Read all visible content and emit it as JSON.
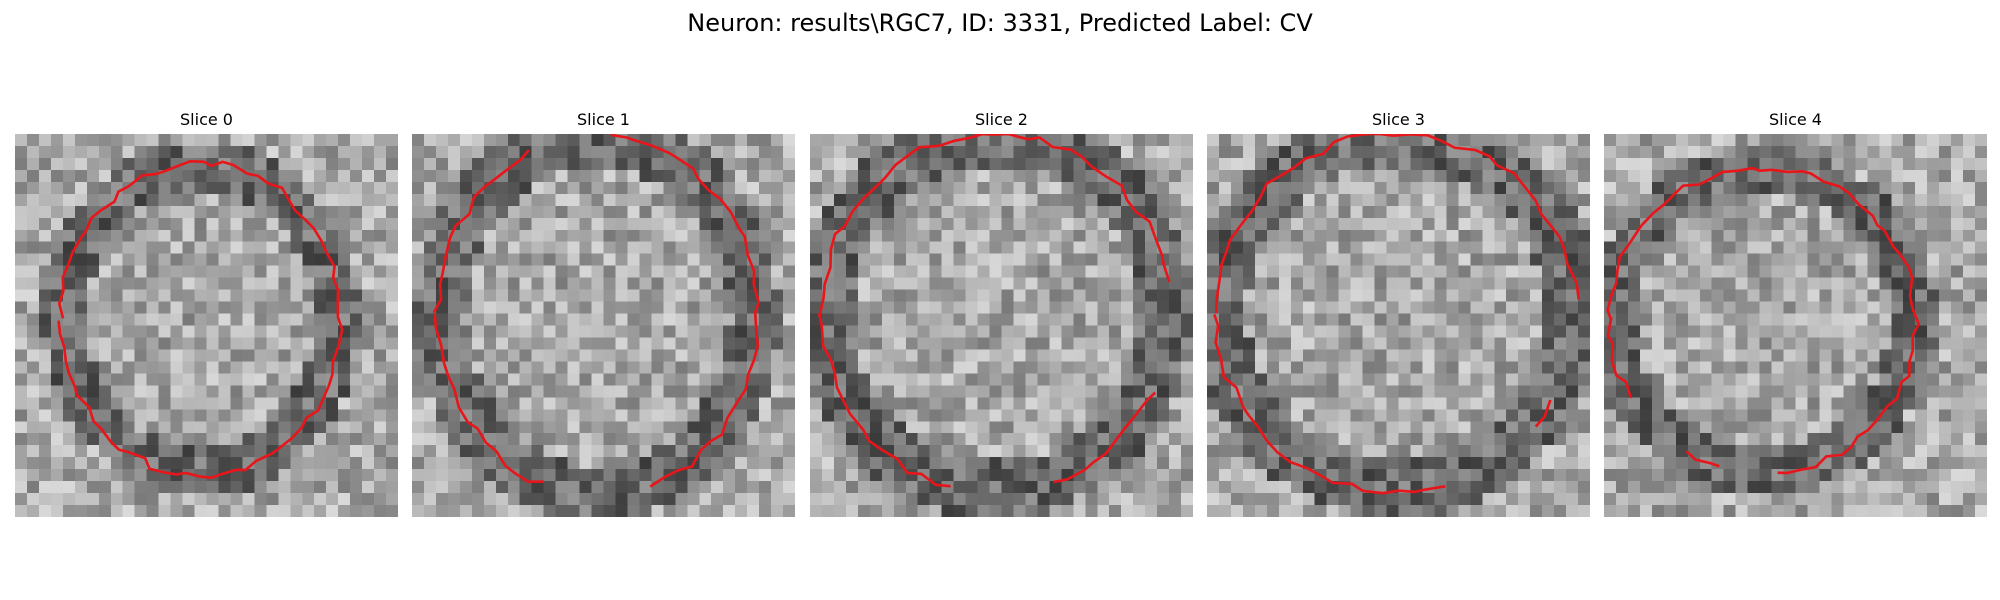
{
  "figure": {
    "title": "Neuron: results\\RGC7, ID: 3331, Predicted Label: CV"
  },
  "colors": {
    "contour": "#e8161b",
    "background": "#ffffff"
  },
  "panels": [
    {
      "title": "Slice 0"
    },
    {
      "title": "Slice 1"
    },
    {
      "title": "Slice 2"
    },
    {
      "title": "Slice 3"
    },
    {
      "title": "Slice 4"
    }
  ]
}
